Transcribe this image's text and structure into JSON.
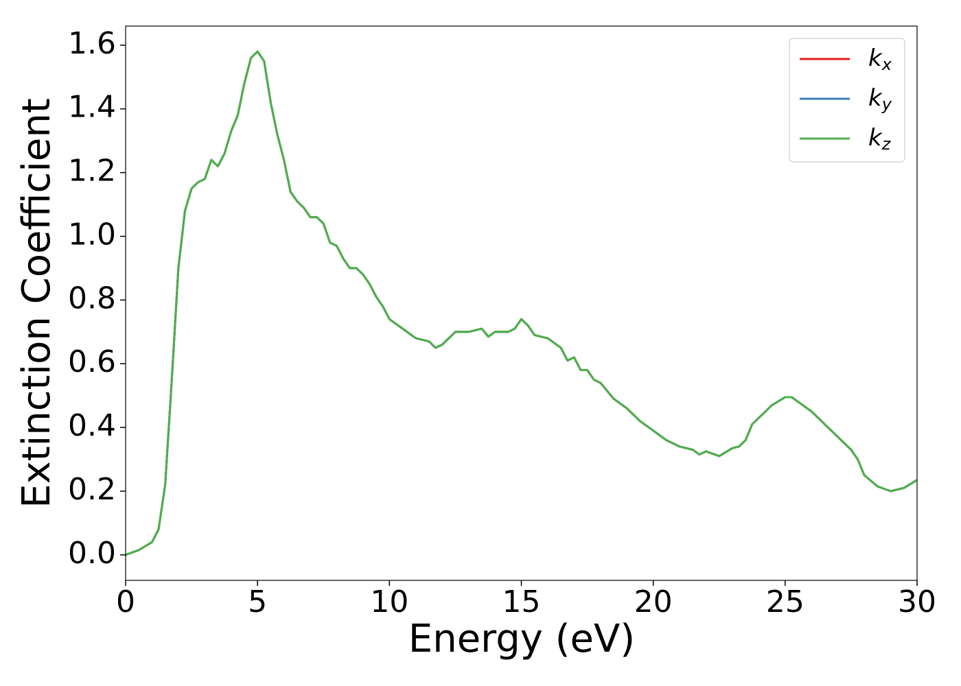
{
  "chart_data": {
    "type": "line",
    "x_label": "Energy (eV)",
    "y_label": "Extinction Coefficient",
    "x": [
      0,
      0.5,
      1.0,
      1.25,
      1.5,
      1.75,
      2.0,
      2.25,
      2.5,
      2.75,
      3.0,
      3.25,
      3.5,
      3.75,
      4.0,
      4.25,
      4.5,
      4.75,
      5.0,
      5.25,
      5.5,
      5.75,
      6.0,
      6.25,
      6.5,
      6.75,
      7.0,
      7.25,
      7.5,
      7.75,
      8.0,
      8.25,
      8.5,
      8.75,
      9.0,
      9.25,
      9.5,
      9.75,
      10.0,
      10.5,
      11.0,
      11.5,
      11.75,
      12.0,
      12.5,
      13.0,
      13.5,
      13.75,
      14.0,
      14.5,
      14.75,
      15.0,
      15.25,
      15.5,
      16.0,
      16.5,
      16.75,
      17.0,
      17.25,
      17.5,
      17.75,
      18.0,
      18.5,
      19.0,
      19.5,
      20.0,
      20.5,
      21.0,
      21.5,
      21.75,
      22.0,
      22.5,
      23.0,
      23.25,
      23.5,
      23.75,
      24.0,
      24.5,
      25.0,
      25.25,
      25.5,
      26.0,
      26.5,
      27.0,
      27.5,
      27.75,
      28.0,
      28.5,
      29.0,
      29.5,
      30.0
    ],
    "series": [
      {
        "name": "kx",
        "color": "#e41a1c",
        "values": [
          0.0,
          0.015,
          0.04,
          0.08,
          0.22,
          0.55,
          0.9,
          1.08,
          1.15,
          1.17,
          1.18,
          1.24,
          1.22,
          1.26,
          1.33,
          1.38,
          1.48,
          1.56,
          1.58,
          1.55,
          1.42,
          1.32,
          1.24,
          1.14,
          1.11,
          1.09,
          1.06,
          1.06,
          1.04,
          0.98,
          0.97,
          0.93,
          0.9,
          0.9,
          0.88,
          0.85,
          0.81,
          0.78,
          0.74,
          0.71,
          0.68,
          0.67,
          0.65,
          0.66,
          0.7,
          0.7,
          0.71,
          0.685,
          0.7,
          0.7,
          0.71,
          0.74,
          0.72,
          0.69,
          0.68,
          0.65,
          0.61,
          0.62,
          0.58,
          0.58,
          0.55,
          0.54,
          0.49,
          0.46,
          0.42,
          0.39,
          0.36,
          0.34,
          0.33,
          0.315,
          0.325,
          0.31,
          0.335,
          0.34,
          0.36,
          0.41,
          0.43,
          0.47,
          0.495,
          0.495,
          0.48,
          0.45,
          0.41,
          0.37,
          0.33,
          0.3,
          0.25,
          0.215,
          0.2,
          0.21,
          0.235
        ]
      },
      {
        "name": "ky",
        "color": "#377eb8",
        "values": [
          0.0,
          0.015,
          0.04,
          0.08,
          0.22,
          0.55,
          0.9,
          1.08,
          1.15,
          1.17,
          1.18,
          1.24,
          1.22,
          1.26,
          1.33,
          1.38,
          1.48,
          1.56,
          1.58,
          1.55,
          1.42,
          1.32,
          1.24,
          1.14,
          1.11,
          1.09,
          1.06,
          1.06,
          1.04,
          0.98,
          0.97,
          0.93,
          0.9,
          0.9,
          0.88,
          0.85,
          0.81,
          0.78,
          0.74,
          0.71,
          0.68,
          0.67,
          0.65,
          0.66,
          0.7,
          0.7,
          0.71,
          0.685,
          0.7,
          0.7,
          0.71,
          0.74,
          0.72,
          0.69,
          0.68,
          0.65,
          0.61,
          0.62,
          0.58,
          0.58,
          0.55,
          0.54,
          0.49,
          0.46,
          0.42,
          0.39,
          0.36,
          0.34,
          0.33,
          0.315,
          0.325,
          0.31,
          0.335,
          0.34,
          0.36,
          0.41,
          0.43,
          0.47,
          0.495,
          0.495,
          0.48,
          0.45,
          0.41,
          0.37,
          0.33,
          0.3,
          0.25,
          0.215,
          0.2,
          0.21,
          0.235
        ]
      },
      {
        "name": "kz",
        "color": "#4daf4a",
        "values": [
          0.0,
          0.015,
          0.04,
          0.08,
          0.22,
          0.55,
          0.9,
          1.08,
          1.15,
          1.17,
          1.18,
          1.24,
          1.22,
          1.26,
          1.33,
          1.38,
          1.48,
          1.56,
          1.58,
          1.55,
          1.42,
          1.32,
          1.24,
          1.14,
          1.11,
          1.09,
          1.06,
          1.06,
          1.04,
          0.98,
          0.97,
          0.93,
          0.9,
          0.9,
          0.88,
          0.85,
          0.81,
          0.78,
          0.74,
          0.71,
          0.68,
          0.67,
          0.65,
          0.66,
          0.7,
          0.7,
          0.71,
          0.685,
          0.7,
          0.7,
          0.71,
          0.74,
          0.72,
          0.69,
          0.68,
          0.65,
          0.61,
          0.62,
          0.58,
          0.58,
          0.55,
          0.54,
          0.49,
          0.46,
          0.42,
          0.39,
          0.36,
          0.34,
          0.33,
          0.315,
          0.325,
          0.31,
          0.335,
          0.34,
          0.36,
          0.41,
          0.43,
          0.47,
          0.495,
          0.495,
          0.48,
          0.45,
          0.41,
          0.37,
          0.33,
          0.3,
          0.25,
          0.215,
          0.2,
          0.21,
          0.235
        ]
      }
    ],
    "xlim": [
      0,
      30
    ],
    "xticks": [
      0,
      5,
      10,
      15,
      20,
      25,
      30
    ],
    "ylim": [
      -0.08,
      1.66
    ],
    "yticks": [
      {
        "value": 0,
        "label": "0.0"
      },
      0.2,
      0.4,
      0.6,
      0.8,
      {
        "value": 1,
        "label": "1.0"
      },
      1.2,
      1.4,
      1.6
    ],
    "grid": false,
    "legend": "upper right"
  }
}
